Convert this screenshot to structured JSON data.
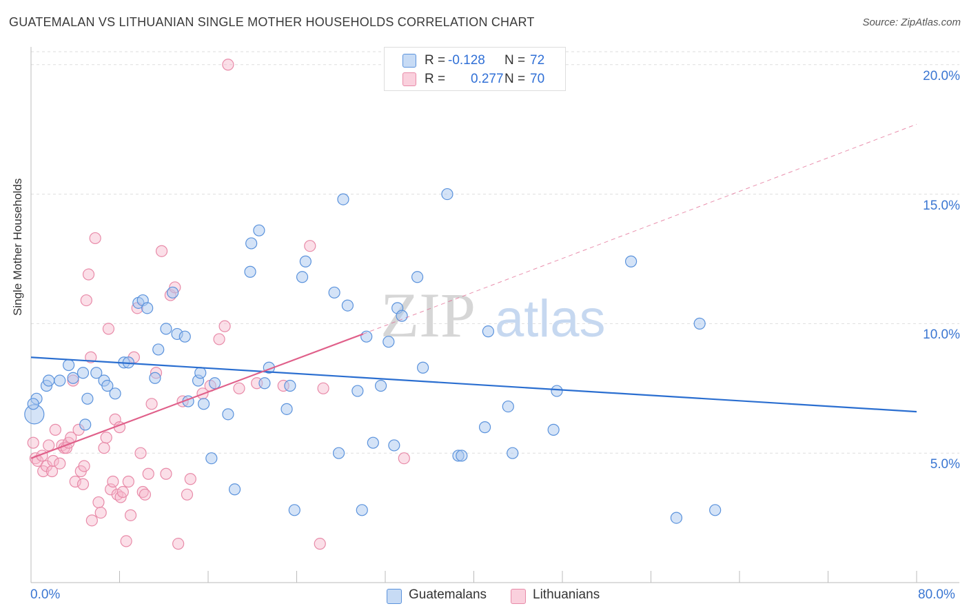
{
  "title": "GUATEMALAN VS LITHUANIAN SINGLE MOTHER HOUSEHOLDS CORRELATION CHART",
  "source": "Source: ZipAtlas.com",
  "watermark": {
    "zip": "ZIP",
    "atlas": "atlas"
  },
  "legend": {
    "r_label": "R =",
    "n_label": "N =",
    "rows": [
      {
        "r": "-0.128",
        "n": "72",
        "color": "#aac8f0"
      },
      {
        "r": "0.277",
        "n": "70",
        "color": "#f6b9cc"
      }
    ]
  },
  "bottom_legend": [
    "Guatemalans",
    "Lithuanians"
  ],
  "colors": {
    "blue_fill": "#aac8f0",
    "blue_stroke": "#5a92dc",
    "blue_line": "#2a6ed0",
    "pink_fill": "#f6b9cc",
    "pink_stroke": "#e88aa8",
    "pink_line": "#e0608a",
    "grid": "#dddddd",
    "tick_text": "#3a76d2"
  },
  "chart_data": {
    "type": "scatter",
    "title": "GUATEMALAN VS LITHUANIAN SINGLE MOTHER HOUSEHOLDS CORRELATION CHART",
    "xlabel": "",
    "ylabel": "Single Mother Households",
    "xlim": [
      0,
      80
    ],
    "ylim": [
      0,
      20.5
    ],
    "x_tick_labels": [
      "0.0%",
      "80.0%"
    ],
    "y_ticks": [
      5,
      10,
      15,
      20
    ],
    "y_tick_labels": [
      "5.0%",
      "10.0%",
      "15.0%",
      "20.0%"
    ],
    "series": [
      {
        "name": "Guatemalans",
        "r": -0.128,
        "n": 72,
        "trend": {
          "x": [
            0,
            80
          ],
          "y": [
            8.7,
            6.6
          ]
        },
        "points": [
          [
            0.3,
            6.5
          ],
          [
            0.5,
            7.1
          ],
          [
            1.4,
            7.6
          ],
          [
            1.6,
            7.8
          ],
          [
            2.6,
            7.8
          ],
          [
            3.4,
            8.4
          ],
          [
            3.8,
            7.9
          ],
          [
            4.7,
            8.1
          ],
          [
            5.1,
            7.1
          ],
          [
            5.9,
            8.1
          ],
          [
            4.9,
            6.1
          ],
          [
            6.6,
            7.8
          ],
          [
            6.9,
            7.6
          ],
          [
            8.4,
            8.5
          ],
          [
            7.6,
            7.3
          ],
          [
            8.8,
            8.5
          ],
          [
            9.7,
            10.8
          ],
          [
            10.1,
            10.9
          ],
          [
            10.5,
            10.6
          ],
          [
            11.2,
            7.9
          ],
          [
            11.5,
            9.0
          ],
          [
            12.2,
            9.8
          ],
          [
            12.8,
            11.2
          ],
          [
            13.2,
            9.6
          ],
          [
            13.9,
            9.5
          ],
          [
            14.2,
            7.0
          ],
          [
            15.1,
            7.8
          ],
          [
            15.3,
            8.1
          ],
          [
            15.6,
            6.9
          ],
          [
            16.6,
            7.7
          ],
          [
            17.8,
            6.5
          ],
          [
            16.3,
            4.8
          ],
          [
            18.4,
            3.6
          ],
          [
            19.8,
            12.0
          ],
          [
            19.9,
            13.1
          ],
          [
            20.6,
            13.6
          ],
          [
            21.1,
            7.7
          ],
          [
            21.5,
            8.3
          ],
          [
            23.1,
            6.7
          ],
          [
            23.4,
            7.6
          ],
          [
            23.8,
            2.8
          ],
          [
            24.5,
            11.8
          ],
          [
            24.8,
            12.4
          ],
          [
            27.4,
            11.2
          ],
          [
            27.8,
            5.0
          ],
          [
            28.2,
            14.8
          ],
          [
            28.6,
            10.7
          ],
          [
            29.5,
            7.4
          ],
          [
            29.9,
            2.8
          ],
          [
            30.3,
            9.5
          ],
          [
            30.9,
            5.4
          ],
          [
            31.6,
            7.6
          ],
          [
            32.3,
            9.3
          ],
          [
            32.8,
            5.3
          ],
          [
            33.1,
            10.6
          ],
          [
            33.5,
            10.3
          ],
          [
            34.9,
            11.8
          ],
          [
            35.4,
            8.3
          ],
          [
            37.6,
            15.0
          ],
          [
            38.6,
            4.9
          ],
          [
            38.9,
            4.9
          ],
          [
            41.0,
            6.0
          ],
          [
            41.3,
            9.7
          ],
          [
            43.1,
            6.8
          ],
          [
            43.5,
            5.0
          ],
          [
            47.2,
            5.9
          ],
          [
            47.5,
            7.4
          ],
          [
            54.2,
            12.4
          ],
          [
            58.3,
            2.5
          ],
          [
            60.4,
            10.0
          ],
          [
            61.8,
            2.8
          ],
          [
            0.2,
            6.9
          ]
        ]
      },
      {
        "name": "Lithuanians",
        "r": 0.277,
        "n": 70,
        "trend_solid": {
          "x": [
            0,
            30
          ],
          "y": [
            4.8,
            9.6
          ]
        },
        "trend_dashed": {
          "x": [
            30,
            80
          ],
          "y": [
            9.6,
            17.7
          ]
        },
        "points": [
          [
            0.2,
            5.4
          ],
          [
            0.4,
            4.8
          ],
          [
            0.6,
            4.7
          ],
          [
            1.0,
            4.9
          ],
          [
            1.1,
            4.3
          ],
          [
            1.4,
            4.5
          ],
          [
            1.6,
            5.3
          ],
          [
            1.9,
            4.3
          ],
          [
            2.0,
            4.7
          ],
          [
            2.2,
            5.9
          ],
          [
            2.6,
            4.6
          ],
          [
            2.8,
            5.3
          ],
          [
            3.0,
            5.2
          ],
          [
            3.2,
            5.2
          ],
          [
            3.4,
            5.4
          ],
          [
            3.6,
            5.6
          ],
          [
            3.8,
            7.8
          ],
          [
            4.0,
            3.9
          ],
          [
            4.3,
            5.9
          ],
          [
            4.5,
            4.3
          ],
          [
            4.7,
            3.8
          ],
          [
            4.8,
            4.5
          ],
          [
            5.0,
            10.9
          ],
          [
            5.2,
            11.9
          ],
          [
            5.5,
            2.4
          ],
          [
            5.8,
            13.3
          ],
          [
            6.1,
            3.1
          ],
          [
            6.3,
            2.7
          ],
          [
            6.6,
            5.2
          ],
          [
            6.8,
            5.6
          ],
          [
            7.0,
            9.8
          ],
          [
            7.2,
            3.6
          ],
          [
            7.4,
            3.9
          ],
          [
            7.6,
            6.3
          ],
          [
            7.8,
            3.4
          ],
          [
            8.1,
            3.3
          ],
          [
            8.3,
            3.5
          ],
          [
            8.6,
            1.6
          ],
          [
            8.8,
            3.9
          ],
          [
            9.0,
            2.6
          ],
          [
            9.3,
            8.7
          ],
          [
            9.6,
            10.6
          ],
          [
            9.9,
            5.0
          ],
          [
            10.1,
            3.5
          ],
          [
            10.3,
            3.4
          ],
          [
            10.6,
            4.2
          ],
          [
            10.9,
            6.9
          ],
          [
            11.3,
            8.1
          ],
          [
            11.8,
            12.8
          ],
          [
            12.2,
            4.2
          ],
          [
            12.6,
            11.1
          ],
          [
            13.0,
            11.4
          ],
          [
            13.3,
            1.5
          ],
          [
            13.7,
            7.0
          ],
          [
            14.1,
            3.4
          ],
          [
            14.4,
            4.0
          ],
          [
            15.5,
            7.3
          ],
          [
            16.2,
            7.6
          ],
          [
            17.0,
            9.4
          ],
          [
            17.5,
            9.9
          ],
          [
            18.8,
            7.5
          ],
          [
            20.4,
            7.7
          ],
          [
            22.8,
            7.6
          ],
          [
            25.2,
            13.0
          ],
          [
            26.1,
            1.5
          ],
          [
            26.4,
            7.5
          ],
          [
            33.7,
            4.8
          ],
          [
            17.8,
            20.0
          ],
          [
            5.4,
            8.7
          ],
          [
            8.0,
            6.0
          ]
        ]
      }
    ]
  }
}
